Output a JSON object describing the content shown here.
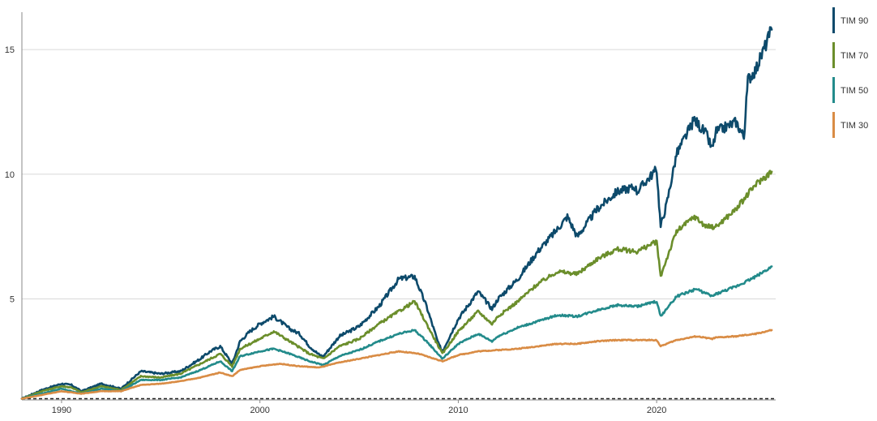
{
  "chart_data": {
    "type": "line",
    "title": "",
    "xlabel": "",
    "ylabel": "",
    "xlim": [
      1988.0,
      2026.0
    ],
    "ylim": [
      0.95,
      16.5
    ],
    "baseline": 1.0,
    "x_ticks": [
      1990,
      2000,
      2010,
      2020
    ],
    "x_tick_labels": [
      "1990",
      "2000",
      "2010",
      "2020"
    ],
    "y_ticks": [
      5,
      10,
      15
    ],
    "y_tick_labels": [
      "5",
      "10",
      "15"
    ],
    "grid": "horizontal",
    "legend_position": "right",
    "series": [
      {
        "name": "TIM 90",
        "color": "#0d4a6b",
        "x": [
          1988.0,
          1989.0,
          1990.0,
          1990.5,
          1991.0,
          1992.0,
          1993.0,
          1994.0,
          1995.0,
          1996.0,
          1997.0,
          1997.5,
          1998.0,
          1998.6,
          1999.0,
          1999.5,
          2000.0,
          2000.7,
          2001.5,
          2002.0,
          2002.5,
          2003.0,
          2003.2,
          2004.0,
          2005.0,
          2006.0,
          2007.0,
          2007.8,
          2008.4,
          2009.0,
          2009.2,
          2010.0,
          2011.0,
          2011.7,
          2012.0,
          2013.0,
          2014.0,
          2015.0,
          2015.5,
          2016.0,
          2017.0,
          2018.0,
          2018.9,
          2019.0,
          2020.0,
          2020.2,
          2020.5,
          2021.0,
          2021.9,
          2022.5,
          2022.8,
          2023.0,
          2024.0,
          2024.4,
          2024.6,
          2025.0,
          2025.8
        ],
        "y": [
          1.0,
          1.35,
          1.6,
          1.55,
          1.3,
          1.6,
          1.4,
          2.1,
          2.0,
          2.1,
          2.6,
          2.9,
          3.1,
          2.4,
          3.3,
          3.7,
          4.0,
          4.3,
          3.8,
          3.6,
          3.1,
          2.75,
          2.7,
          3.5,
          3.9,
          4.7,
          5.8,
          5.9,
          4.7,
          3.2,
          2.9,
          4.2,
          5.3,
          4.6,
          5.0,
          5.8,
          6.9,
          7.8,
          8.3,
          7.5,
          8.6,
          9.3,
          9.5,
          9.3,
          10.2,
          7.9,
          8.8,
          10.8,
          12.2,
          11.6,
          11.0,
          11.7,
          12.1,
          11.5,
          13.8,
          14.2,
          15.8
        ]
      },
      {
        "name": "TIM 70",
        "color": "#6b8e2b",
        "x": [
          1988.0,
          1989.0,
          1990.0,
          1990.5,
          1991.0,
          1992.0,
          1993.0,
          1994.0,
          1995.0,
          1996.0,
          1997.0,
          1998.0,
          1998.6,
          1999.0,
          2000.0,
          2000.7,
          2001.5,
          2002.5,
          2003.2,
          2004.0,
          2005.0,
          2006.0,
          2007.0,
          2007.8,
          2008.4,
          2009.2,
          2010.0,
          2011.0,
          2011.7,
          2012.0,
          2013.0,
          2014.0,
          2015.0,
          2016.0,
          2017.0,
          2018.0,
          2019.0,
          2020.0,
          2020.2,
          2020.5,
          2021.0,
          2021.9,
          2022.5,
          2023.0,
          2024.0,
          2025.0,
          2025.8
        ],
        "y": [
          1.0,
          1.3,
          1.5,
          1.45,
          1.25,
          1.5,
          1.35,
          1.9,
          1.85,
          2.0,
          2.4,
          2.8,
          2.3,
          3.0,
          3.4,
          3.7,
          3.3,
          2.8,
          2.6,
          3.1,
          3.4,
          4.0,
          4.5,
          4.9,
          4.0,
          2.8,
          3.7,
          4.5,
          4.0,
          4.3,
          4.9,
          5.6,
          6.1,
          6.0,
          6.6,
          7.0,
          6.9,
          7.3,
          5.9,
          6.6,
          7.7,
          8.3,
          7.9,
          7.9,
          8.6,
          9.6,
          10.1
        ]
      },
      {
        "name": "TIM 50",
        "color": "#238b8b",
        "x": [
          1988.0,
          1989.0,
          1990.0,
          1991.0,
          1992.0,
          1993.0,
          1994.0,
          1995.0,
          1996.0,
          1997.0,
          1998.0,
          1998.6,
          1999.0,
          2000.0,
          2000.7,
          2001.5,
          2002.5,
          2003.2,
          2004.0,
          2005.0,
          2006.0,
          2007.0,
          2007.8,
          2008.4,
          2009.2,
          2010.0,
          2011.0,
          2011.7,
          2012.0,
          2013.0,
          2014.0,
          2015.0,
          2016.0,
          2017.0,
          2018.0,
          2019.0,
          2020.0,
          2020.2,
          2020.5,
          2021.0,
          2022.0,
          2022.8,
          2023.0,
          2024.0,
          2025.0,
          2025.8
        ],
        "y": [
          1.0,
          1.2,
          1.4,
          1.2,
          1.4,
          1.3,
          1.75,
          1.75,
          1.85,
          2.15,
          2.5,
          2.1,
          2.7,
          2.9,
          3.0,
          2.8,
          2.5,
          2.35,
          2.7,
          2.95,
          3.3,
          3.6,
          3.75,
          3.3,
          2.6,
          3.2,
          3.6,
          3.3,
          3.5,
          3.85,
          4.1,
          4.35,
          4.3,
          4.55,
          4.75,
          4.7,
          4.9,
          4.3,
          4.6,
          5.1,
          5.4,
          5.1,
          5.2,
          5.5,
          5.9,
          6.3
        ]
      },
      {
        "name": "TIM 30",
        "color": "#d98c45",
        "x": [
          1988.0,
          1989.0,
          1990.0,
          1991.0,
          1992.0,
          1993.0,
          1994.0,
          1995.0,
          1996.0,
          1997.0,
          1998.0,
          1998.6,
          1999.0,
          2000.0,
          2001.0,
          2002.0,
          2003.0,
          2004.0,
          2005.0,
          2006.0,
          2007.0,
          2008.0,
          2009.2,
          2010.0,
          2011.0,
          2012.0,
          2013.0,
          2014.0,
          2015.0,
          2016.0,
          2017.0,
          2018.0,
          2019.0,
          2020.0,
          2020.2,
          2020.5,
          2021.0,
          2022.0,
          2022.8,
          2023.0,
          2024.0,
          2025.0,
          2025.8
        ],
        "y": [
          1.0,
          1.15,
          1.3,
          1.2,
          1.3,
          1.3,
          1.55,
          1.6,
          1.7,
          1.85,
          2.05,
          1.9,
          2.15,
          2.3,
          2.4,
          2.3,
          2.25,
          2.45,
          2.6,
          2.75,
          2.9,
          2.8,
          2.5,
          2.75,
          2.9,
          2.95,
          3.0,
          3.1,
          3.2,
          3.2,
          3.3,
          3.35,
          3.35,
          3.35,
          3.1,
          3.2,
          3.35,
          3.5,
          3.4,
          3.45,
          3.5,
          3.6,
          3.75
        ]
      }
    ]
  }
}
